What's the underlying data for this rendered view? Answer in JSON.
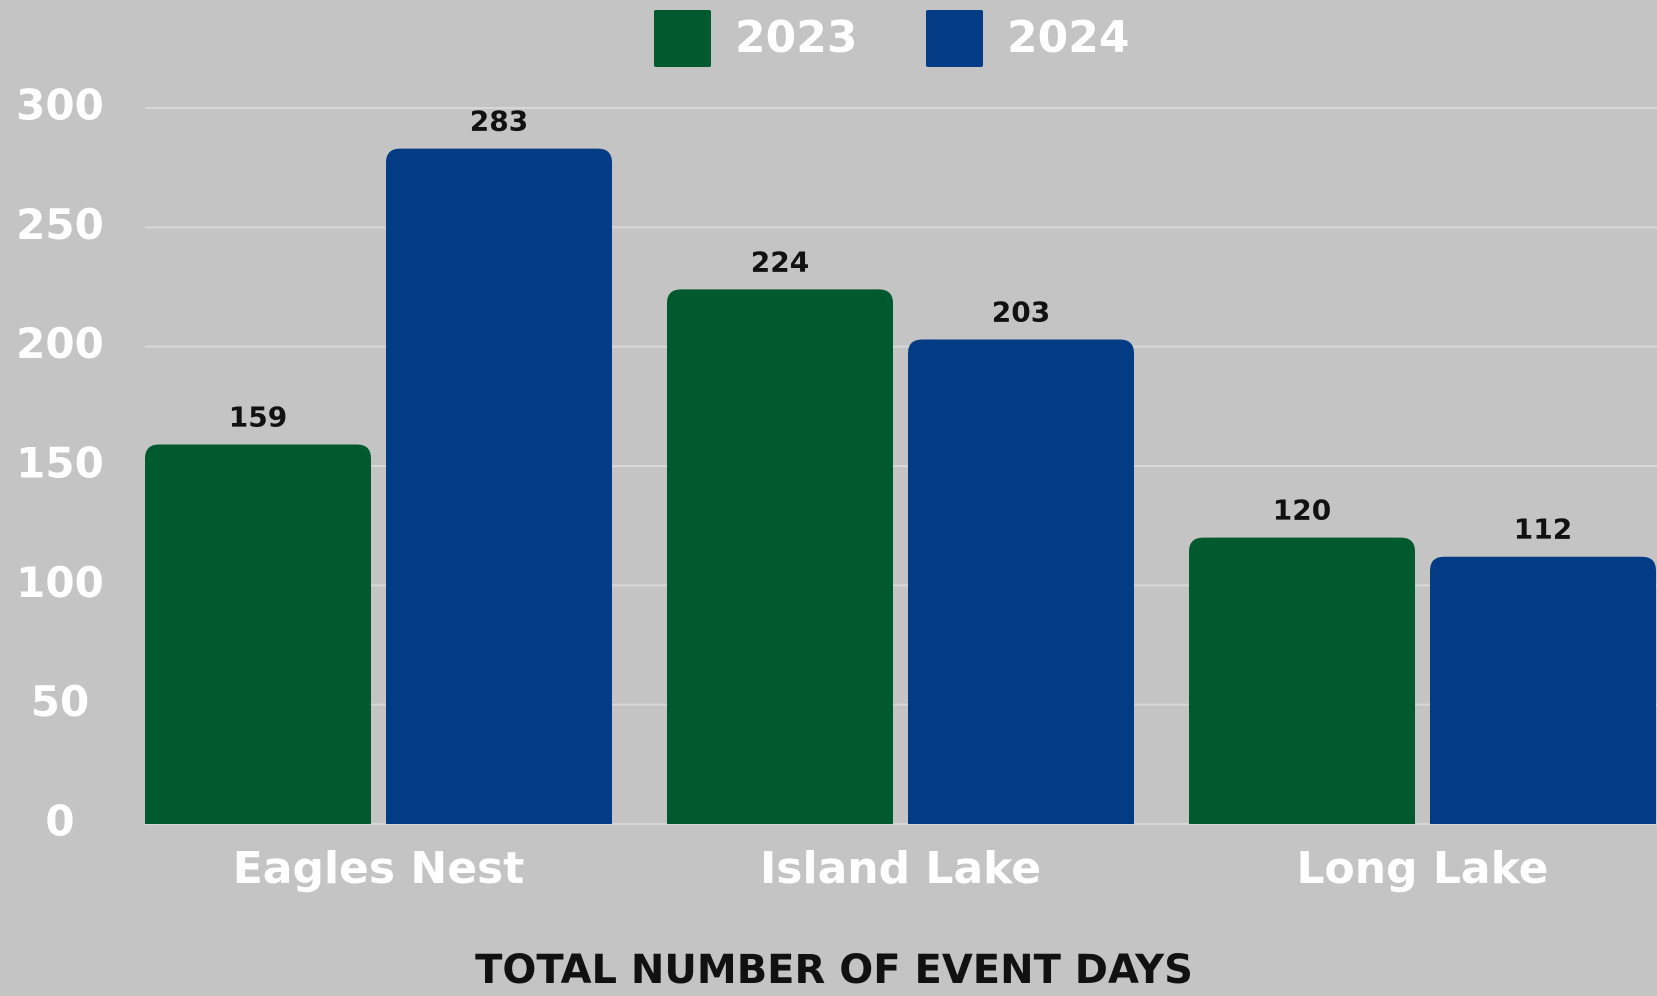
{
  "chart_data": {
    "type": "bar",
    "xlabel": "TOTAL NUMBER OF EVENT DAYS",
    "categories": [
      "Eagles Nest",
      "Island Lake",
      "Long Lake"
    ],
    "series": [
      {
        "name": "2023",
        "color": "#01592e",
        "values": [
          159,
          224,
          120
        ]
      },
      {
        "name": "2024",
        "color": "#033b85",
        "values": [
          283,
          203,
          112
        ]
      }
    ],
    "ylim": [
      0,
      300
    ],
    "yticks": [
      0,
      50,
      100,
      150,
      200,
      250,
      300
    ],
    "grid": true,
    "legend": "top"
  }
}
